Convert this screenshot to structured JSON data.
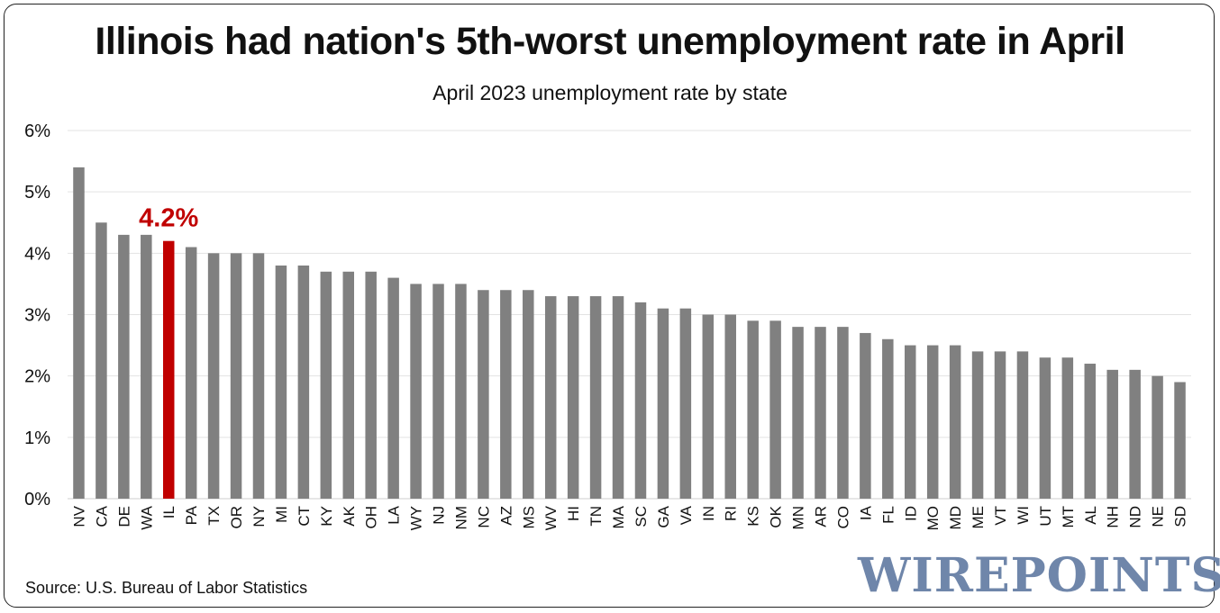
{
  "title": "Illinois had nation's 5th-worst unemployment rate in April",
  "subtitle": "April 2023 unemployment rate by state",
  "source": "Source: U.S. Bureau of Labor Statistics",
  "logo_text": "WIREPOINTS",
  "colors": {
    "bar": "#808080",
    "highlight": "#c00000",
    "grid": "#e3e3e3",
    "logo": "#6f86aa"
  },
  "chart_data": {
    "type": "bar",
    "title": "Illinois had nation's 5th-worst unemployment rate in April",
    "subtitle": "April 2023 unemployment rate by state",
    "xlabel": "",
    "ylabel": "",
    "ylim": [
      0,
      6
    ],
    "yticks": [
      0,
      1,
      2,
      3,
      4,
      5,
      6
    ],
    "ytick_labels": [
      "0%",
      "1%",
      "2%",
      "3%",
      "4%",
      "5%",
      "6%"
    ],
    "grid": true,
    "categories": [
      "NV",
      "CA",
      "DE",
      "WA",
      "IL",
      "PA",
      "TX",
      "OR",
      "NY",
      "MI",
      "CT",
      "KY",
      "AK",
      "OH",
      "LA",
      "WY",
      "NJ",
      "NM",
      "NC",
      "AZ",
      "MS",
      "WV",
      "HI",
      "TN",
      "MA",
      "SC",
      "GA",
      "VA",
      "IN",
      "RI",
      "KS",
      "OK",
      "MN",
      "AR",
      "CO",
      "IA",
      "FL",
      "ID",
      "MO",
      "MD",
      "ME",
      "VT",
      "WI",
      "UT",
      "MT",
      "AL",
      "NH",
      "ND",
      "NE",
      "SD"
    ],
    "values": [
      5.4,
      4.5,
      4.3,
      4.3,
      4.2,
      4.1,
      4.0,
      4.0,
      4.0,
      3.8,
      3.8,
      3.7,
      3.7,
      3.7,
      3.6,
      3.5,
      3.5,
      3.5,
      3.4,
      3.4,
      3.4,
      3.3,
      3.3,
      3.3,
      3.3,
      3.2,
      3.1,
      3.1,
      3.0,
      3.0,
      2.9,
      2.9,
      2.8,
      2.8,
      2.8,
      2.7,
      2.6,
      2.5,
      2.5,
      2.5,
      2.4,
      2.4,
      2.4,
      2.3,
      2.3,
      2.2,
      2.1,
      2.1,
      2.0,
      1.9
    ],
    "highlight_category": "IL",
    "annotation": {
      "category": "IL",
      "text": "4.2%"
    }
  }
}
